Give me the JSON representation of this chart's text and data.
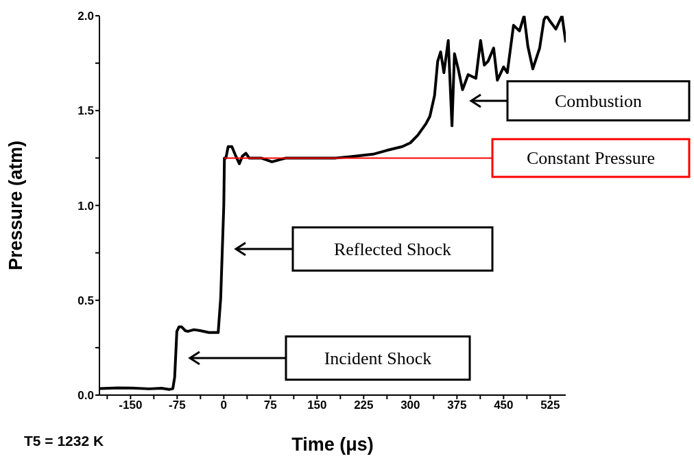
{
  "chart_data": {
    "type": "line",
    "xlabel": "Time (μs)",
    "ylabel": "Pressure (atm)",
    "xlim": [
      -200,
      550
    ],
    "ylim": [
      0,
      2
    ],
    "xticks": [
      {
        "value": -187.5,
        "label": null
      },
      -150,
      {
        "value": -112.5,
        "label": null
      },
      -75,
      {
        "value": -37.5,
        "label": null
      },
      0,
      {
        "value": 37.5,
        "label": null
      },
      75,
      {
        "value": 112.5,
        "label": null
      },
      150,
      {
        "value": 187.5,
        "label": null
      },
      225,
      {
        "value": 262.5,
        "label": null
      },
      300,
      {
        "value": 337.5,
        "label": null
      },
      375,
      {
        "value": 412.5,
        "label": null
      },
      450,
      {
        "value": 487.5,
        "label": null
      },
      525
    ],
    "yticks": [
      {
        "value": 0,
        "label": "0.0"
      },
      {
        "value": 0.25,
        "label": null
      },
      0.5,
      {
        "value": 0.75,
        "label": null
      },
      {
        "value": 1,
        "label": "1.0"
      },
      {
        "value": 1.25,
        "label": null
      },
      1.5,
      {
        "value": 1.75,
        "label": null
      },
      {
        "value": 2,
        "label": "2.0"
      }
    ],
    "grid": false,
    "legend": false,
    "marker": "none",
    "line_style": "solid",
    "series": [
      {
        "type": "line",
        "color": "#000000",
        "x": [
          -200,
          -170,
          -147,
          -120,
          -100,
          -88,
          -82,
          -79,
          -75.5,
          -72,
          -68,
          -62,
          -58,
          -48,
          -38,
          -24,
          -9,
          -5,
          0,
          1,
          3.4,
          7,
          13,
          18,
          25,
          30,
          35.5,
          40.8,
          60,
          77.5,
          100,
          139,
          180,
          213,
          240,
          262,
          287,
          300,
          312,
          325,
          331.5,
          339,
          344,
          348.8,
          354,
          361,
          367,
          371,
          377,
          384,
          393,
          405.5,
          413,
          419,
          425,
          434,
          440,
          450,
          456,
          466,
          475.5,
          483,
          489,
          497,
          508,
          515,
          519,
          525,
          534,
          544,
          550
        ],
        "values": [
          0.034,
          0.038,
          0.037,
          0.033,
          0.036,
          0.03,
          0.034,
          0.094,
          0.336,
          0.36,
          0.36,
          0.34,
          0.336,
          0.345,
          0.34,
          0.33,
          0.33,
          0.51,
          1.0,
          1.25,
          1.25,
          1.31,
          1.31,
          1.27,
          1.22,
          1.26,
          1.275,
          1.25,
          1.25,
          1.23,
          1.25,
          1.25,
          1.25,
          1.26,
          1.27,
          1.29,
          1.31,
          1.33,
          1.37,
          1.43,
          1.47,
          1.58,
          1.76,
          1.81,
          1.7,
          1.87,
          1.42,
          1.8,
          1.72,
          1.61,
          1.69,
          1.67,
          1.87,
          1.74,
          1.76,
          1.83,
          1.66,
          1.73,
          1.7,
          1.95,
          1.92,
          2.0,
          1.84,
          1.72,
          1.83,
          1.98,
          2.0,
          1.97,
          1.93,
          2.0,
          1.86
        ]
      },
      {
        "type": "line",
        "name": "Constant Pressure",
        "color": "#ff0000",
        "x": [
          1,
          432
        ],
        "values": [
          1.25,
          1.25
        ]
      }
    ],
    "annotations": [
      "Combustion",
      "Reflected Shock",
      "Incident Shock",
      "T5 = 1232 K"
    ]
  }
}
